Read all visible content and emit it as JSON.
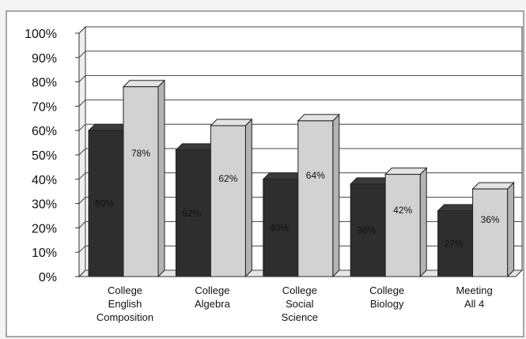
{
  "chart_data": {
    "type": "bar",
    "categories": [
      [
        "College",
        "English",
        "Composition"
      ],
      [
        "College",
        "Algebra"
      ],
      [
        "College",
        "Social",
        "Science"
      ],
      [
        "College",
        "Biology"
      ],
      [
        "Meeting",
        "All 4"
      ]
    ],
    "series": [
      {
        "values": [
          60,
          52,
          40,
          38,
          27
        ],
        "labels": [
          "60%",
          "52%",
          "40%",
          "38%",
          "27%"
        ],
        "color": "#2e2e2e"
      },
      {
        "values": [
          78,
          62,
          64,
          42,
          36
        ],
        "labels": [
          "78%",
          "62%",
          "64%",
          "42%",
          "36%"
        ],
        "color": "#d2d2d2"
      }
    ],
    "yticks": [
      "0%",
      "10%",
      "20%",
      "30%",
      "40%",
      "50%",
      "60%",
      "70%",
      "80%",
      "90%",
      "100%"
    ],
    "ylim": [
      0,
      100
    ],
    "grid": true,
    "style": "3d-clustered-bar",
    "title": "",
    "xlabel": "",
    "ylabel": ""
  }
}
